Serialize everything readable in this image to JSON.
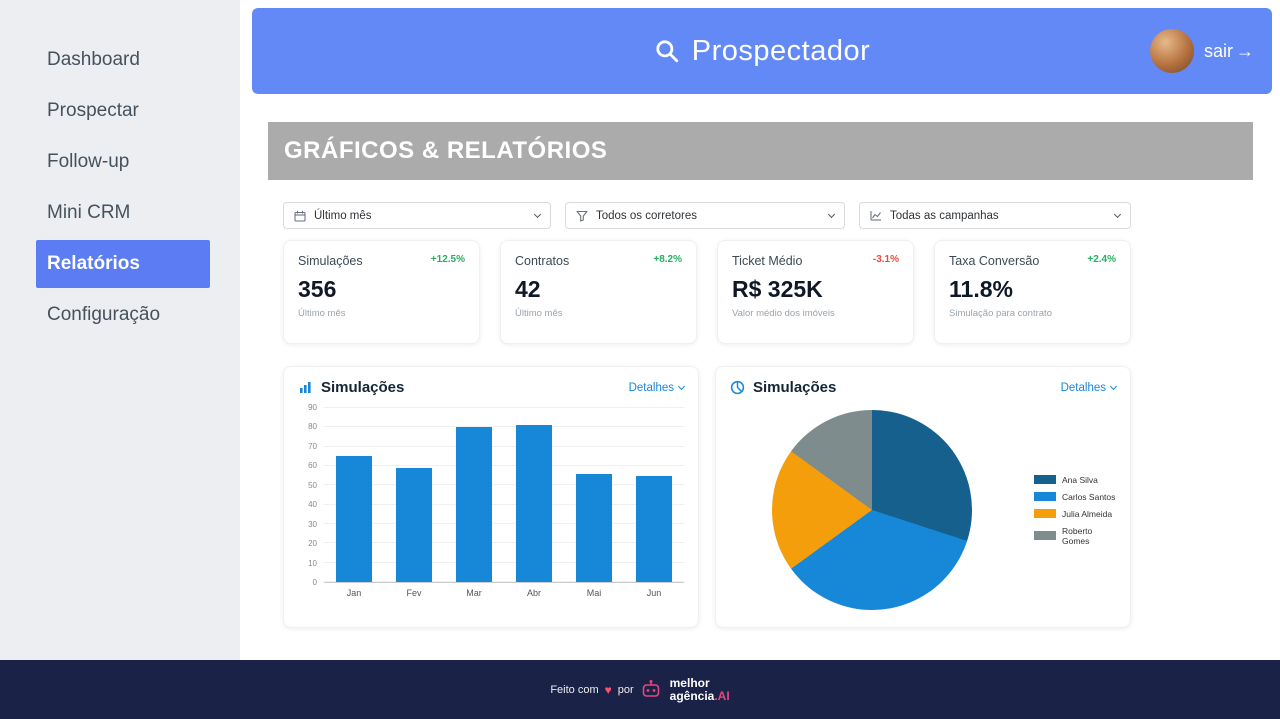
{
  "theme": {
    "primary": "#6289f5",
    "sidebar_active": "#5b7cf3",
    "banner_bg": "#ababab",
    "positive": "#27ae60",
    "negative": "#e74c3c",
    "footer_bg": "#1b2248",
    "link_blue": "#1787d8"
  },
  "sidebar": {
    "items": [
      {
        "label": "Dashboard",
        "active": false
      },
      {
        "label": "Prospectar",
        "active": false
      },
      {
        "label": "Follow-up",
        "active": false
      },
      {
        "label": "Mini CRM",
        "active": false
      },
      {
        "label": "Relatórios",
        "active": true
      },
      {
        "label": "Configuração",
        "active": false
      }
    ]
  },
  "header": {
    "title": "Prospectador",
    "logout_label": "sair",
    "logout_arrow": "→"
  },
  "banner": {
    "title": "GRÁFICOS & RELATÓRIOS"
  },
  "filters": [
    {
      "icon": "calendar-icon",
      "label": "Último mês"
    },
    {
      "icon": "filter-icon",
      "label": "Todos os corretores"
    },
    {
      "icon": "campaign-chart-icon",
      "label": "Todas as campanhas"
    }
  ],
  "stats": [
    {
      "title": "Simulações",
      "delta": "+12.5%",
      "delta_positive": true,
      "value": "356",
      "subtitle": "Último mês"
    },
    {
      "title": "Contratos",
      "delta": "+8.2%",
      "delta_positive": true,
      "value": "42",
      "subtitle": "Último mês"
    },
    {
      "title": "Ticket Médio",
      "delta": "-3.1%",
      "delta_positive": false,
      "value": "R$ 325K",
      "subtitle": "Valor médio dos imóveis"
    },
    {
      "title": "Taxa Conversão",
      "delta": "+2.4%",
      "delta_positive": true,
      "value": "11.8%",
      "subtitle": "Simulação para contrato"
    }
  ],
  "charts": {
    "bar": {
      "title": "Simulações",
      "details_label": "Detalhes"
    },
    "pie": {
      "title": "Simulações",
      "details_label": "Detalhes"
    }
  },
  "chart_data": [
    {
      "type": "bar",
      "title": "Simulações",
      "categories": [
        "Jan",
        "Fev",
        "Mar",
        "Abr",
        "Mai",
        "Jun"
      ],
      "values": [
        65,
        59,
        80,
        81,
        56,
        55
      ],
      "xlabel": "",
      "ylabel": "",
      "ylim": [
        0,
        90
      ],
      "ytick_step": 10,
      "grid": true,
      "bar_color": "#1787d8"
    },
    {
      "type": "pie",
      "title": "Simulações",
      "labels": [
        "Ana Silva",
        "Carlos Santos",
        "Julia Almeida",
        "Roberto Gomes"
      ],
      "values": [
        30,
        35,
        20,
        15
      ],
      "colors": [
        "#15608d",
        "#1787d8",
        "#f59e0b",
        "#7f8c8d"
      ],
      "legend_position": "right"
    }
  ],
  "footer": {
    "made_with": "Feito com",
    "heart": "♥",
    "por": "por",
    "logo_line1": "melhor",
    "logo_line2": "agência",
    "logo_suffix": ".AI"
  }
}
